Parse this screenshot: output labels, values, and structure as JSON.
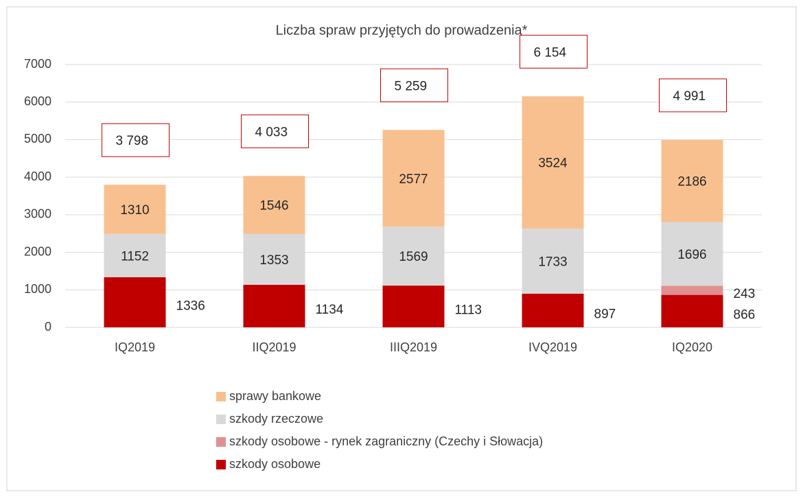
{
  "chart_data": {
    "type": "stacked_bar",
    "title": "Liczba spraw przyjętych do prowadzenia*",
    "categories": [
      "IQ2019",
      "IIQ2019",
      "IIIQ2019",
      "IVQ2019",
      "IQ2020"
    ],
    "series": [
      {
        "name": "szkody osobowe",
        "color": "#c00000",
        "values": [
          1336,
          1134,
          1113,
          897,
          866
        ]
      },
      {
        "name": "szkody osobowe - rynek zagraniczny (Czechy i Słowacja)",
        "color": "#e09090",
        "values": [
          null,
          null,
          null,
          null,
          243
        ]
      },
      {
        "name": "szkody rzeczowe",
        "color": "#d9d9d9",
        "values": [
          1152,
          1353,
          1569,
          1733,
          1696
        ]
      },
      {
        "name": "sprawy bankowe",
        "color": "#f8c08f",
        "values": [
          1310,
          1546,
          2577,
          3524,
          2186
        ]
      }
    ],
    "totals": [
      3798,
      4033,
      5259,
      6154,
      4991
    ],
    "total_labels": [
      "3 798",
      "4 033",
      "5 259",
      "6 154",
      "4 991"
    ],
    "ylim": [
      0,
      7000
    ],
    "yticks": [
      0,
      1000,
      2000,
      3000,
      4000,
      5000,
      6000,
      7000
    ],
    "grid": true
  }
}
